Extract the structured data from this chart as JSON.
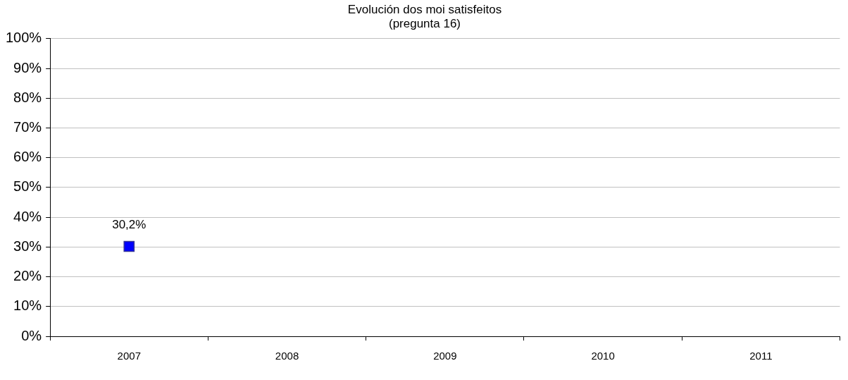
{
  "chart_data": {
    "type": "line",
    "title": "Evolución dos moi satisfeitos\n(pregunta 16)",
    "categories": [
      "2007",
      "2008",
      "2009",
      "2010",
      "2011"
    ],
    "series": [
      {
        "color": "#0000ff",
        "values": [
          30.2,
          null,
          null,
          null,
          null
        ],
        "value_labels": [
          "30,2%",
          null,
          null,
          null,
          null
        ]
      }
    ],
    "ylim": [
      0,
      100
    ],
    "yticks": [
      {
        "value": 0,
        "label": "0%"
      },
      {
        "value": 10,
        "label": "10%"
      },
      {
        "value": 20,
        "label": "20%"
      },
      {
        "value": 30,
        "label": "30%"
      },
      {
        "value": 40,
        "label": "40%"
      },
      {
        "value": 50,
        "label": "50%"
      },
      {
        "value": 60,
        "label": "60%"
      },
      {
        "value": 70,
        "label": "70%"
      },
      {
        "value": 80,
        "label": "80%"
      },
      {
        "value": 90,
        "label": "90%"
      },
      {
        "value": 100,
        "label": "100%"
      }
    ],
    "grid": "y",
    "legend": false,
    "marker": "square"
  }
}
